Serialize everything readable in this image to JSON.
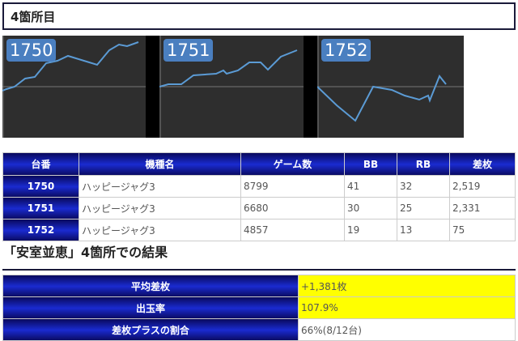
{
  "section_title": "4箇所目",
  "graphs": [
    {
      "label": "1750"
    },
    {
      "label": "1751"
    },
    {
      "label": "1752"
    }
  ],
  "table": {
    "headers": [
      "台番",
      "機種名",
      "ゲーム数",
      "BB",
      "RB",
      "差枚"
    ],
    "rows": [
      [
        "1750",
        "ハッピージャグ3",
        "8799",
        "41",
        "32",
        "2,519"
      ],
      [
        "1751",
        "ハッピージャグ3",
        "6680",
        "30",
        "25",
        "2,331"
      ],
      [
        "1752",
        "ハッピージャグ3",
        "4857",
        "19",
        "13",
        "75"
      ]
    ]
  },
  "results_heading": "「安室並恵」4箇所での結果",
  "results": [
    {
      "label": "平均差枚",
      "value": "+1,381枚",
      "highlight": true
    },
    {
      "label": "出玉率",
      "value": "107.9%",
      "highlight": true
    },
    {
      "label": "差枚プラスの割合",
      "value": "66%(8/12台)",
      "highlight": false
    }
  ],
  "colors": {
    "header_blue": "#1a2bd0",
    "highlight": "#ffff00",
    "graph_line": "#5b9bd5",
    "graph_bg": "#2e2e2e"
  }
}
